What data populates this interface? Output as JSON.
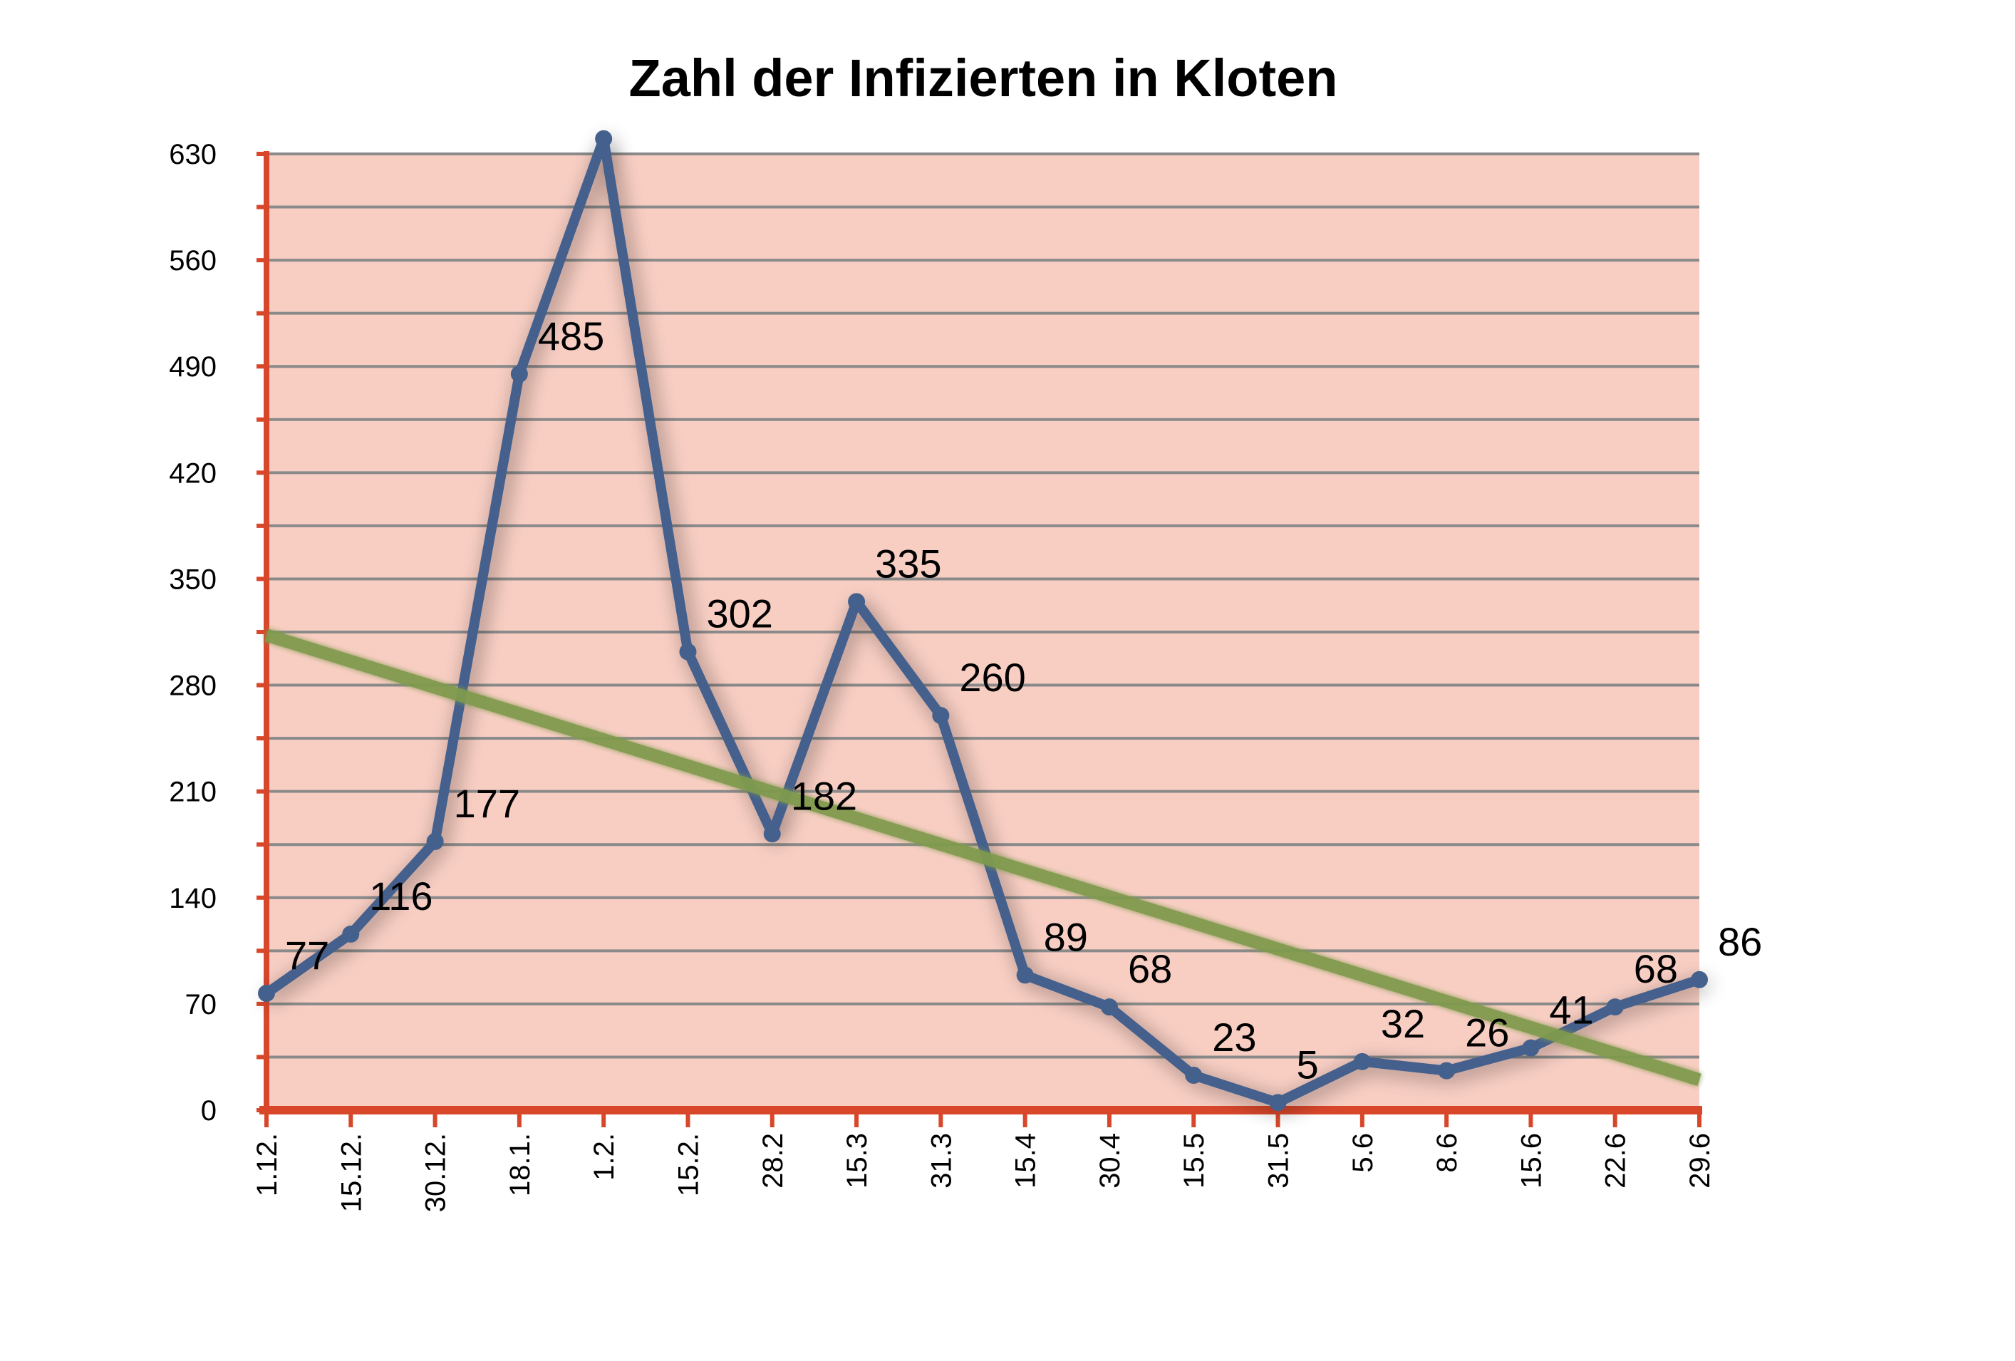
{
  "chart_data": {
    "type": "line",
    "title": "Zahl der Infizierten in Kloten",
    "xlabel": "",
    "ylabel": "",
    "categories": [
      "1.12.",
      "15.12.",
      "30.12.",
      "18.1.",
      "1.2.",
      "15.2.",
      "28.2",
      "15.3",
      "31.3",
      "15.4",
      "30.4",
      "15.5",
      "31.5",
      "5.6",
      "8.6",
      "15.6",
      "22.6",
      "29.6"
    ],
    "series": [
      {
        "values": [
          77,
          116,
          177,
          485,
          640,
          302,
          182,
          335,
          260,
          89,
          68,
          23,
          5,
          32,
          26,
          41,
          68,
          86
        ],
        "data_labels": [
          "77",
          "116",
          "177",
          "485",
          "",
          "302",
          "182",
          "335",
          "260",
          "89",
          "68",
          "23",
          "5",
          "32",
          "26",
          "41",
          "68",
          "86"
        ],
        "color": "#44608C"
      }
    ],
    "trendline": {
      "type": "linear",
      "start": 313,
      "end": 20,
      "color": "#7F9A4E"
    },
    "ylim": [
      0,
      630
    ],
    "yticks": [
      0,
      70,
      140,
      210,
      280,
      350,
      420,
      490,
      560,
      630
    ],
    "grid": true,
    "grid_step": 35,
    "legend": "none",
    "colors": {
      "plot_background": "#F8CEC3",
      "axis": "#D9472B",
      "gridline": "#8A8A8A"
    }
  }
}
